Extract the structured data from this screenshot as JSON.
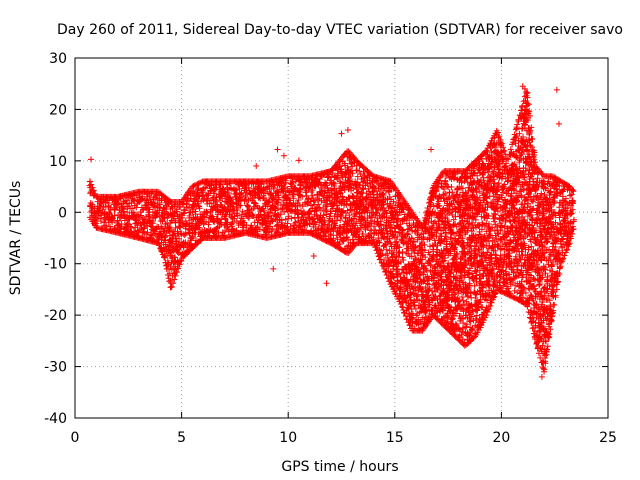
{
  "chart_data": {
    "type": "scatter",
    "title": "Day 260 of 2011, Sidereal Day-to-day VTEC variation (SDTVAR) for receiver savo",
    "xlabel": "GPS time / hours",
    "ylabel": "SDTVAR / TECUs",
    "xlim": [
      0,
      25
    ],
    "ylim": [
      -40,
      30
    ],
    "xticks": [
      "0",
      "5",
      "10",
      "15",
      "20",
      "25"
    ],
    "yticks": [
      "-40",
      "-30",
      "-20",
      "-10",
      "0",
      "10",
      "20",
      "30"
    ],
    "grid": true,
    "marker": "+",
    "color": "#ff0000",
    "envelope": {
      "description": "Dense band of points; upper and lower extents (TECU) vs GPS time (hours)",
      "x": [
        0.7,
        1.0,
        2.0,
        3.0,
        3.9,
        4.2,
        4.5,
        5.0,
        5.5,
        6.0,
        7.0,
        8.0,
        9.0,
        10.0,
        11.0,
        12.0,
        12.8,
        13.2,
        14.0,
        14.8,
        15.3,
        15.8,
        16.3,
        16.8,
        17.3,
        17.8,
        18.3,
        18.8,
        19.3,
        19.8,
        20.3,
        20.8,
        21.2,
        21.6,
        22.0,
        22.4,
        22.8,
        23.2,
        23.4
      ],
      "upper": [
        6,
        3,
        3,
        4,
        4,
        3,
        2,
        2,
        5,
        6,
        6,
        6,
        6,
        7,
        7,
        8,
        12,
        10,
        7,
        6,
        3,
        0,
        -3,
        5,
        8,
        8,
        8,
        10,
        12,
        16,
        10,
        18,
        24,
        9,
        7,
        7,
        6,
        5,
        4
      ],
      "lower": [
        -1,
        -3,
        -4,
        -5,
        -6,
        -9,
        -15,
        -9,
        -7,
        -5,
        -5,
        -4,
        -5,
        -4,
        -4,
        -6,
        -8,
        -6,
        -6,
        -14,
        -18,
        -23,
        -23,
        -20,
        -22,
        -24,
        -26,
        -24,
        -20,
        -15,
        -16,
        -17,
        -18,
        -25,
        -31,
        -20,
        -10,
        -6,
        -3
      ]
    },
    "outliers": [
      {
        "x": 0.75,
        "y": 10.3
      },
      {
        "x": 8.5,
        "y": 9.0
      },
      {
        "x": 9.3,
        "y": -11.0
      },
      {
        "x": 9.5,
        "y": 12.2
      },
      {
        "x": 9.8,
        "y": 11.0
      },
      {
        "x": 10.5,
        "y": 10.1
      },
      {
        "x": 11.2,
        "y": -8.5
      },
      {
        "x": 11.8,
        "y": -13.8
      },
      {
        "x": 12.5,
        "y": 15.3
      },
      {
        "x": 12.8,
        "y": 16.0
      },
      {
        "x": 16.7,
        "y": 12.2
      },
      {
        "x": 22.6,
        "y": 23.8
      },
      {
        "x": 22.7,
        "y": 17.2
      },
      {
        "x": 21.9,
        "y": -32.0
      },
      {
        "x": 21.0,
        "y": 24.5
      },
      {
        "x": 21.1,
        "y": 24.0
      }
    ]
  }
}
